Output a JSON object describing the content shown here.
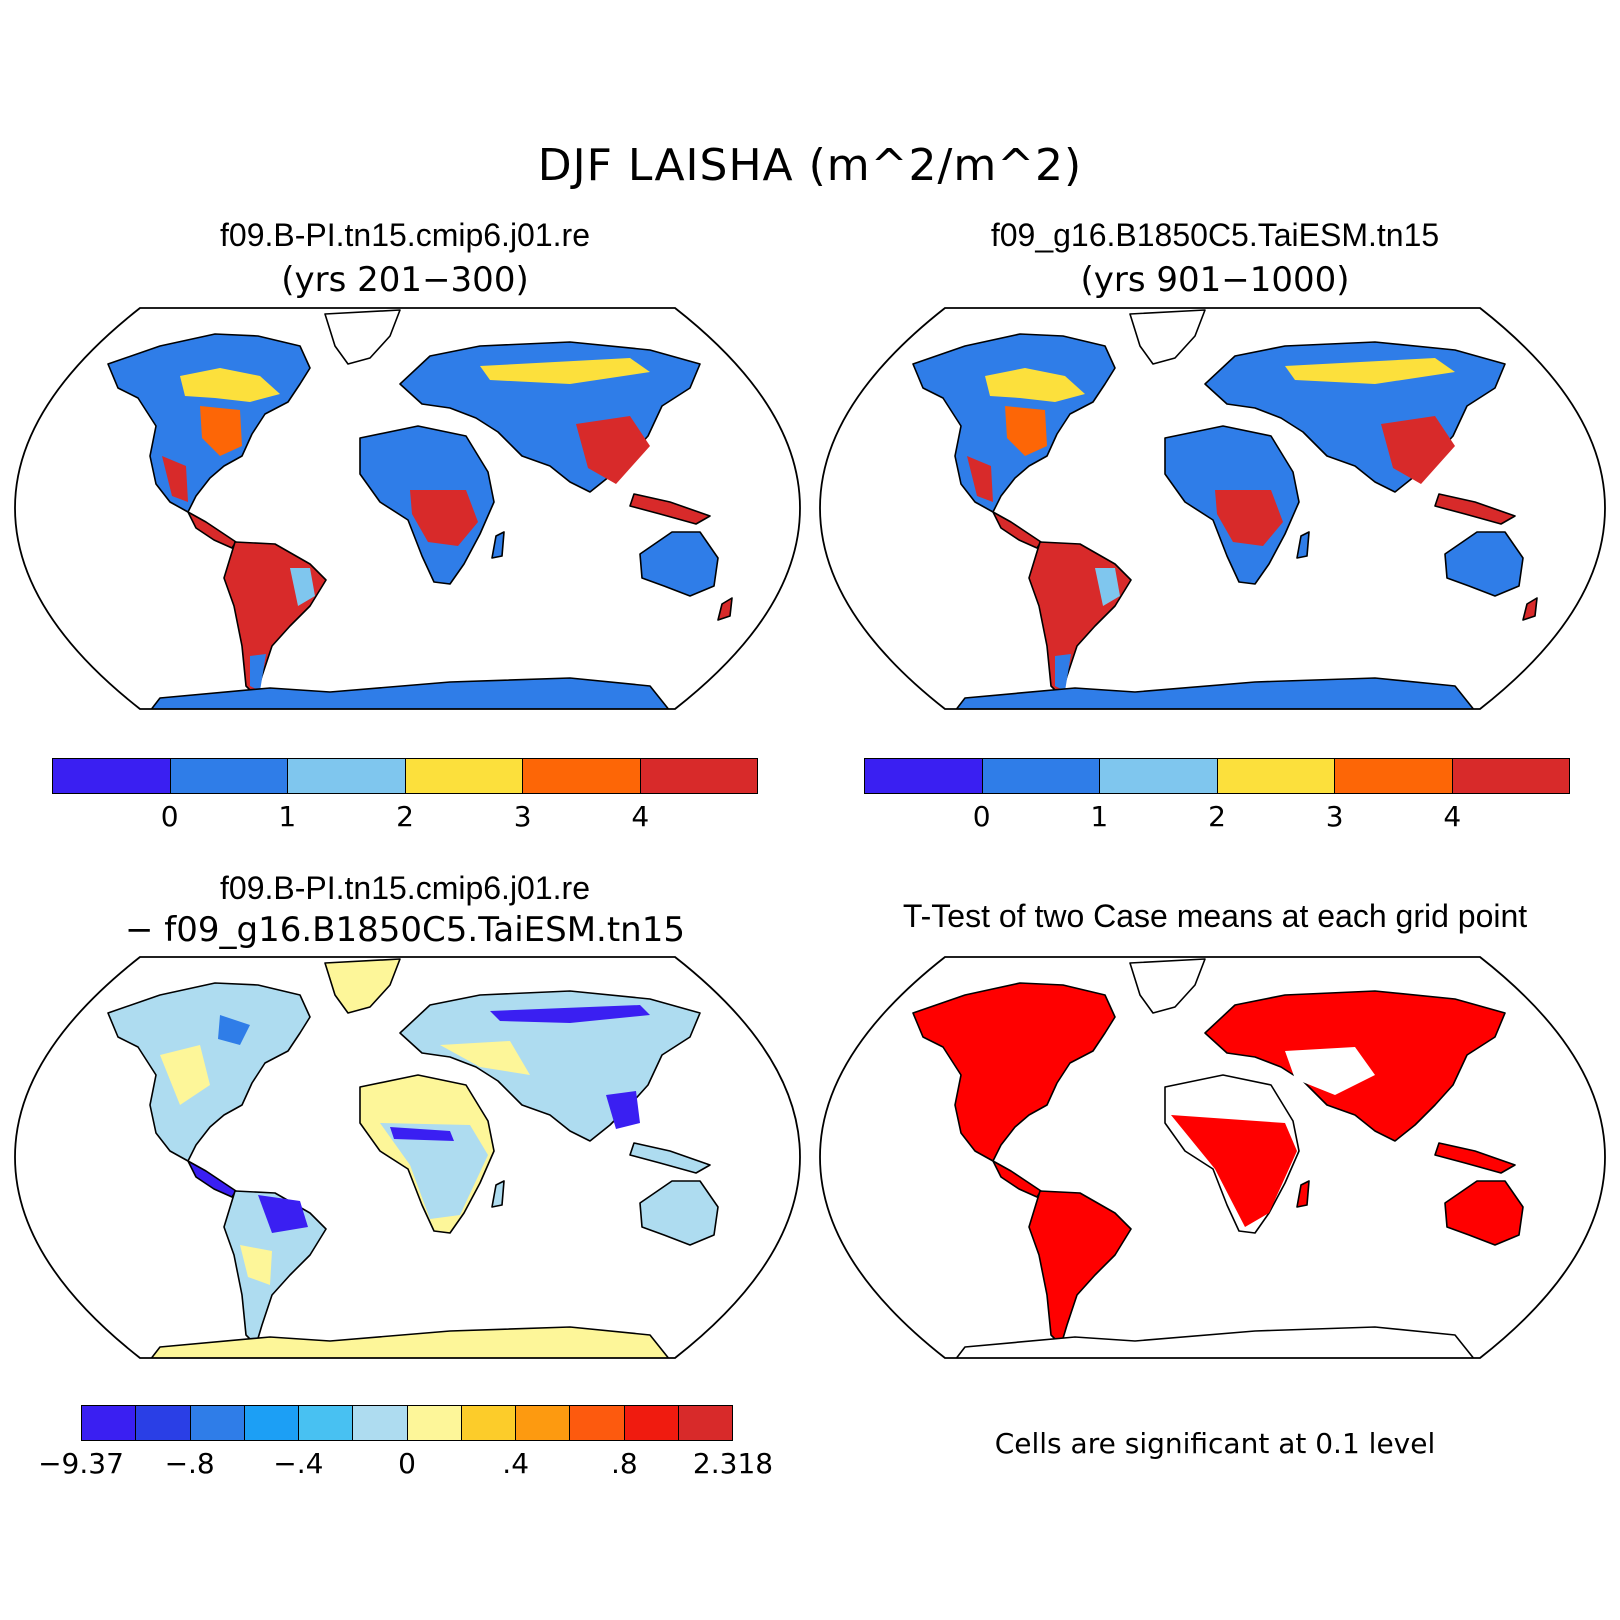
{
  "figure": {
    "title": "DJF LAISHA (m^2/m^2)"
  },
  "panels": {
    "top_left": {
      "case": "f09.B-PI.tn15.cmip6.j01.re",
      "years": "(yrs 201−300)"
    },
    "top_right": {
      "case": "f09_g16.B1850C5.TaiESM.tn15",
      "years": "(yrs 901−1000)"
    },
    "bottom_left": {
      "case": "f09.B-PI.tn15.cmip6.j01.re",
      "minus": "− f09_g16.B1850C5.TaiESM.tn15"
    },
    "bottom_right": {
      "title": "T-Test of two Case means at each grid point",
      "note": "Cells are significant at 0.1 level"
    }
  },
  "colorbars": {
    "mean": {
      "colors": [
        "#3a1ff2",
        "#2f7de8",
        "#7fc6ee",
        "#fce03c",
        "#fd6606",
        "#d82a2a"
      ],
      "ticks": [
        "0",
        "1",
        "2",
        "3",
        "4"
      ]
    },
    "diff": {
      "colors": [
        "#3a1ff2",
        "#2a3fe6",
        "#2f7de8",
        "#1c9ff5",
        "#48c1f2",
        "#aedcf0",
        "#fdf699",
        "#fccc2a",
        "#fd9a10",
        "#fd5a0e",
        "#f01b0f",
        "#d82a2a"
      ],
      "ticks": [
        "−9.37",
        "−.8",
        "−.4",
        "0",
        ".4",
        ".8",
        "2.318"
      ]
    }
  },
  "map_colors": {
    "ocean": "#ffffff",
    "mean_low": "#2f7de8",
    "mean_mid": "#7fc6ee",
    "mean_yellow": "#fce03c",
    "mean_orange": "#fd6606",
    "mean_high": "#d82a2a",
    "diff_pale": "#fdf699",
    "diff_light_blue": "#aedcf0",
    "diff_blue": "#3a1ff2",
    "significant": "#ff0000"
  }
}
